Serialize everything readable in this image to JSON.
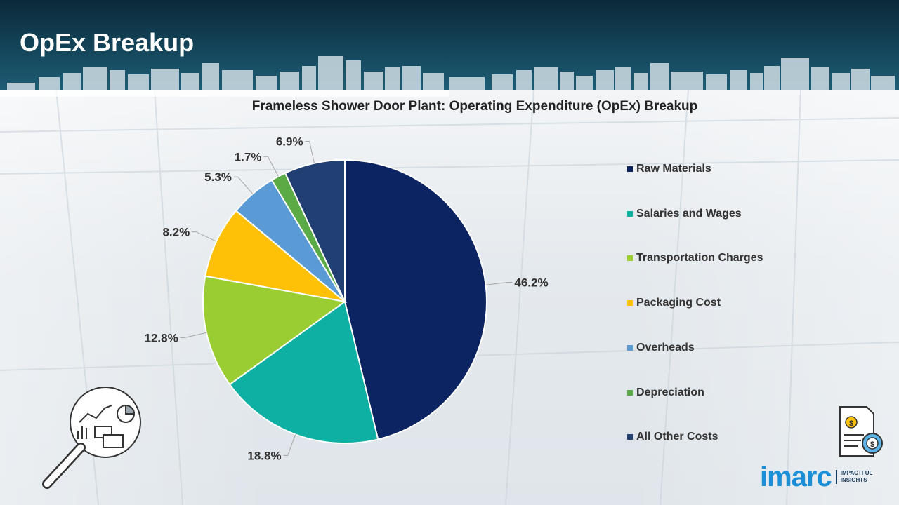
{
  "header": {
    "title": "OpEx Breakup"
  },
  "chart_data": {
    "type": "pie",
    "title": "Frameless Shower Door Plant: Operating Expenditure (OpEx) Breakup",
    "categories": [
      "Raw Materials",
      "Salaries and Wages",
      "Transportation Charges",
      "Packaging Cost",
      "Overheads",
      "Depreciation",
      "All Other Costs"
    ],
    "values": [
      46.2,
      18.8,
      12.8,
      8.2,
      5.3,
      1.7,
      6.9
    ],
    "labels": [
      "46.2%",
      "18.8%",
      "12.8%",
      "8.2%",
      "5.3%",
      "1.7%",
      "6.9%"
    ],
    "colors": [
      "#0c2461",
      "#0fb0a4",
      "#9acd32",
      "#ffc107",
      "#5b9bd5",
      "#5aaa46",
      "#213f72"
    ],
    "legend_position": "right"
  },
  "logo": {
    "name": "imarc",
    "tagline": "IMPACTFUL INSIGHTS"
  },
  "icons": {
    "left": "magnifier-analytics-icon",
    "right": "invoice-dollar-gear-icon"
  }
}
